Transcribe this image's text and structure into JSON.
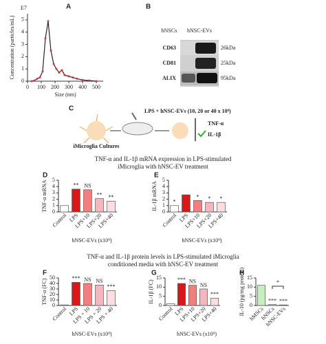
{
  "panel_labels": [
    "A",
    "B",
    "C",
    "D",
    "E",
    "F",
    "G",
    "H"
  ],
  "section_titles": [
    "TNF-α and IL-1β mRNA expression in LPS-stimulated",
    "iMicroglia with hNSC-EV treatment",
    "TNF-α and IL-1β protein levels in LPS-stimulated iMicroglia",
    "conditioned media with hNSC-EV treatment"
  ],
  "blot": {
    "columns": [
      "hNSCs",
      "hNSC-EVs"
    ],
    "rows": [
      {
        "label": "CD63",
        "size": "26kDa"
      },
      {
        "label": "CD81",
        "size": "25kDa"
      },
      {
        "label": "ALIX",
        "size": "95kDa"
      }
    ]
  },
  "schematic": {
    "treatment": "LPS + hNSC-EVs (10, 20 or 40 x 10⁹)",
    "culture": "iMicroglia Cultures",
    "markers": [
      "TNF-α",
      "IL-1β"
    ]
  },
  "chart_data": [
    {
      "type": "line",
      "scale_label": "E7",
      "xlabel": "Size (nm)",
      "ylabel": "Concentration (particles/mL)",
      "color": "#222222",
      "x": [
        30,
        50,
        70,
        90,
        110,
        130,
        150,
        170,
        190,
        210,
        230,
        250,
        270,
        300,
        330,
        360,
        400,
        450,
        500
      ],
      "values": [
        0,
        0.05,
        0.2,
        0.3,
        0.8,
        3.5,
        4.9,
        2.5,
        1.4,
        1.0,
        0.7,
        0.9,
        0.5,
        0.4,
        0.3,
        0.2,
        0.1,
        0.05,
        0
      ],
      "xlim": [
        0,
        550
      ],
      "xticks": [
        0,
        100,
        200,
        300,
        400,
        500
      ],
      "ylim": [
        0,
        5.5
      ],
      "yticks": [
        0,
        1,
        2,
        3,
        4,
        5
      ]
    },
    {
      "type": "bar",
      "ylabel": "TNF-α mRNA",
      "xlabel": "hNSC-EVs (x10⁹)",
      "categories": [
        "Control",
        "LPS",
        "LPS+10",
        "LPS+20",
        "LPS+40"
      ],
      "values": [
        1,
        3.6,
        3.5,
        2.1,
        1.7
      ],
      "colors": [
        "#ffffff",
        "#d7191c",
        "#f08080",
        "#f6b6bf",
        "#fbdde2"
      ],
      "ylim": [
        0,
        5
      ],
      "yticks": [
        0,
        1,
        2,
        3,
        4,
        5
      ],
      "bar_annotations": [
        null,
        "**",
        "NS",
        "**",
        "**"
      ]
    },
    {
      "type": "bar",
      "ylabel": "IL-1β mRNA",
      "xlabel": "hNSC-EVs (x10⁹)",
      "categories": [
        "Control",
        "LPS",
        "LPS+10",
        "LPS+20",
        "LPS+40"
      ],
      "values": [
        1,
        2.7,
        1.8,
        1.5,
        1.5
      ],
      "colors": [
        "#ffffff",
        "#d7191c",
        "#f08080",
        "#f6b6bf",
        "#fbdde2"
      ],
      "ylim": [
        0,
        5
      ],
      "yticks": [
        0,
        1,
        2,
        3,
        4,
        5
      ],
      "bar_annotations": [
        "*",
        null,
        "*",
        "*",
        "*"
      ]
    },
    {
      "type": "bar",
      "ylabel": "TNF-α (FC)",
      "xlabel": "hNSC-EVs (x10⁹)",
      "categories": [
        "Control",
        "LPS",
        "LPS + 10",
        "LPS + 20",
        "LPS + 40"
      ],
      "values": [
        1,
        42,
        40,
        37,
        27
      ],
      "colors": [
        "#ffffff",
        "#d7191c",
        "#f08080",
        "#f6b6bf",
        "#fbdde2"
      ],
      "ylim": [
        0,
        50
      ],
      "yticks": [
        0,
        10,
        20,
        30,
        40,
        50
      ],
      "bar_annotations": [
        null,
        "***",
        "NS",
        "NS",
        "***"
      ]
    },
    {
      "type": "bar",
      "ylabel": "IL-1β (FC)",
      "xlabel": "hNSC-EVs (x10⁹)",
      "categories": [
        "Control",
        "LPS",
        "LPS+10",
        "LPS+20",
        "LPS+40"
      ],
      "values": [
        1,
        12,
        11,
        9,
        4
      ],
      "colors": [
        "#ffffff",
        "#d7191c",
        "#f08080",
        "#f6b6bf",
        "#fbdde2"
      ],
      "ylim": [
        0,
        15
      ],
      "yticks": [
        0,
        5,
        10,
        15
      ],
      "bar_annotations": [
        null,
        "***",
        "NS",
        "NS",
        "***"
      ]
    },
    {
      "type": "bar",
      "ylabel": "IL-10 (pg/mg protein)",
      "categories": [
        "hMSCs",
        "hNSCs",
        "hNSC-EVs"
      ],
      "values": [
        11,
        0.5,
        0.3
      ],
      "colors": [
        "#c6efc0",
        "#a8d8f0",
        "#7fb2e0"
      ],
      "ylim": [
        0,
        15
      ],
      "yticks": [
        0,
        5,
        10,
        15
      ],
      "bar_annotations": [
        null,
        "***",
        "***"
      ],
      "bracket_label": "*"
    }
  ]
}
